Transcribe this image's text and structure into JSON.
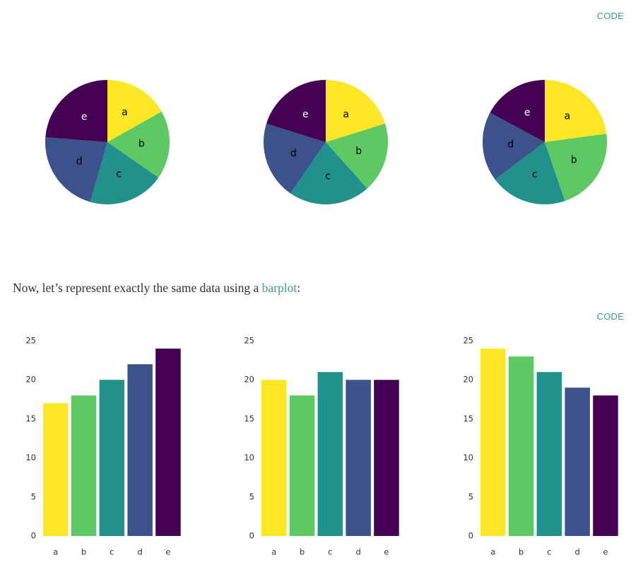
{
  "header": {
    "code_label": "CODE"
  },
  "prose": {
    "before": "Now, let’s represent exactly the same data using a ",
    "link": "barplot",
    "after": ":"
  },
  "section2": {
    "code_label": "CODE"
  },
  "categories": [
    "a",
    "b",
    "c",
    "d",
    "e"
  ],
  "colors": [
    "#fde725",
    "#5ec962",
    "#21918c",
    "#3b528b",
    "#440154"
  ],
  "chart_data": [
    {
      "type": "pie",
      "categories": [
        "a",
        "b",
        "c",
        "d",
        "e"
      ],
      "values": [
        17,
        18,
        20,
        22,
        24
      ]
    },
    {
      "type": "pie",
      "categories": [
        "a",
        "b",
        "c",
        "d",
        "e"
      ],
      "values": [
        20,
        18,
        21,
        20,
        20
      ]
    },
    {
      "type": "pie",
      "categories": [
        "a",
        "b",
        "c",
        "d",
        "e"
      ],
      "values": [
        24,
        23,
        21,
        19,
        18
      ]
    },
    {
      "type": "bar",
      "categories": [
        "a",
        "b",
        "c",
        "d",
        "e"
      ],
      "values": [
        17,
        18,
        20,
        22,
        24
      ],
      "ylim": [
        0,
        25
      ],
      "yticks": [
        0,
        5,
        10,
        15,
        20,
        25
      ]
    },
    {
      "type": "bar",
      "categories": [
        "a",
        "b",
        "c",
        "d",
        "e"
      ],
      "values": [
        20,
        18,
        21,
        20,
        20
      ],
      "ylim": [
        0,
        25
      ],
      "yticks": [
        0,
        5,
        10,
        15,
        20,
        25
      ]
    },
    {
      "type": "bar",
      "categories": [
        "a",
        "b",
        "c",
        "d",
        "e"
      ],
      "values": [
        24,
        23,
        21,
        19,
        18
      ],
      "ylim": [
        0,
        25
      ],
      "yticks": [
        0,
        5,
        10,
        15,
        20,
        25
      ]
    }
  ]
}
